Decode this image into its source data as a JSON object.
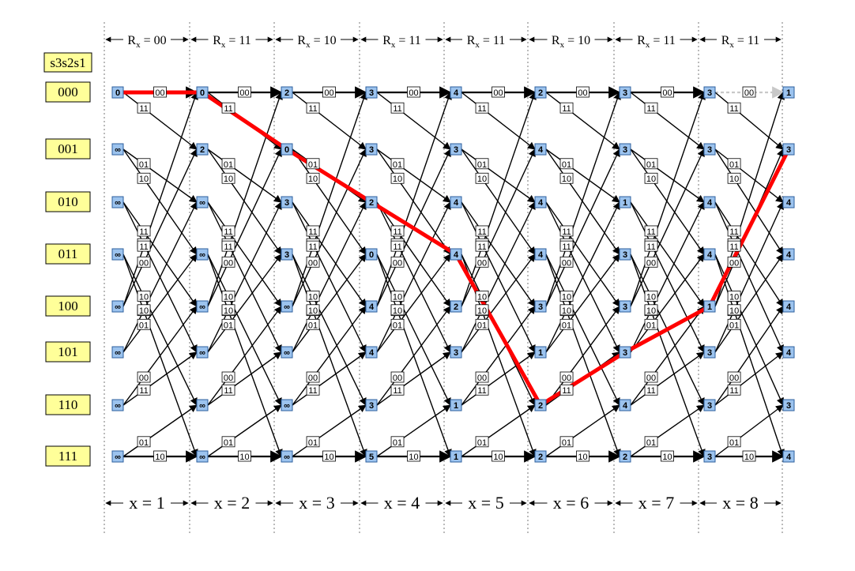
{
  "header_title": "s3s2s1",
  "received": [
    "00",
    "11",
    "10",
    "11",
    "11",
    "10",
    "11",
    "11"
  ],
  "state_labels": [
    "000",
    "001",
    "010",
    "011",
    "100",
    "101",
    "110",
    "111"
  ],
  "stage_labels": [
    "x = 1",
    "x = 2",
    "x = 3",
    "x = 4",
    "x = 5",
    "x = 6",
    "x = 7",
    "x = 8"
  ],
  "metrics": [
    [
      "0",
      "∞",
      "∞",
      "∞",
      "∞",
      "∞",
      "∞",
      "∞"
    ],
    [
      "0",
      "2",
      "∞",
      "∞",
      "∞",
      "∞",
      "∞",
      "∞"
    ],
    [
      "2",
      "0",
      "3",
      "3",
      "∞",
      "∞",
      "∞",
      "∞"
    ],
    [
      "3",
      "3",
      "2",
      "0",
      "4",
      "4",
      "3",
      "5"
    ],
    [
      "4",
      "3",
      "4",
      "4",
      "2",
      "3",
      "1",
      "1"
    ],
    [
      "2",
      "4",
      "4",
      "4",
      "3",
      "1",
      "2",
      "2"
    ],
    [
      "3",
      "3",
      "1",
      "3",
      "3",
      "3",
      "4",
      "2"
    ],
    [
      "3",
      "3",
      "4",
      "4",
      "1",
      "3",
      "3",
      "3"
    ],
    [
      "1",
      "3",
      "4",
      "4",
      "4",
      "4",
      "3",
      "4"
    ]
  ],
  "edge_outputs": {
    "s0": [
      "00",
      "11"
    ],
    "s1": [
      "01",
      "10"
    ],
    "s2": [
      "11",
      "00"
    ],
    "s3": [
      "10",
      "01"
    ],
    "s4": [
      "11",
      "00"
    ],
    "s5": [
      "10",
      "01"
    ],
    "s6": [
      "00",
      "11"
    ],
    "s7": [
      "01",
      "10"
    ]
  },
  "survivor_path": [
    0,
    0,
    1,
    2,
    3,
    6,
    5,
    4,
    1
  ],
  "colors": {
    "node_fill": "#9cc3ee",
    "state_label_fill": "#ffff99",
    "survivor": "#ff0000",
    "dashed_edge": "#c8c8c8",
    "edge": "#000000"
  }
}
